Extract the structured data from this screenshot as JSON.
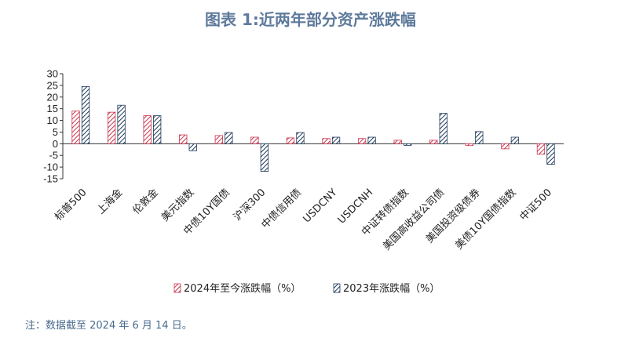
{
  "chart_data": {
    "type": "bar",
    "title": "图表 1:近两年部分资产涨跌幅",
    "categories": [
      "标普500",
      "上海金",
      "伦敦金",
      "美元指数",
      "中债10Y国债",
      "沪深300",
      "中债信用债",
      "USDCNY",
      "USDCNH",
      "中证转债指数",
      "美国高收益公司债",
      "美国投资级债券",
      "美债10Y国债指数",
      "中证500"
    ],
    "series": [
      {
        "name": "2024年至今涨跌幅（%）",
        "values": [
          14,
          13.5,
          12,
          3.8,
          3.5,
          2.8,
          2.5,
          2.2,
          2.2,
          1.5,
          1.5,
          -0.8,
          -2.2,
          -4.5
        ],
        "color": "#c9354d",
        "pattern": "hatch-red"
      },
      {
        "name": "2023年涨跌幅（%）",
        "values": [
          24.5,
          16.5,
          12,
          -3,
          4.8,
          -11.8,
          4.8,
          2.8,
          2.8,
          -0.7,
          13,
          5.2,
          2.8,
          -8.8
        ],
        "color": "#1f3a5a",
        "pattern": "hatch-navy"
      }
    ],
    "ylim": [
      -15,
      30
    ],
    "yticks": [
      -15,
      -10,
      -5,
      0,
      5,
      10,
      15,
      20,
      25,
      30
    ],
    "legend_placement": "bottom-center",
    "grid": false
  },
  "footnote": "注：数据截至 2024 年 6 月 14 日。"
}
